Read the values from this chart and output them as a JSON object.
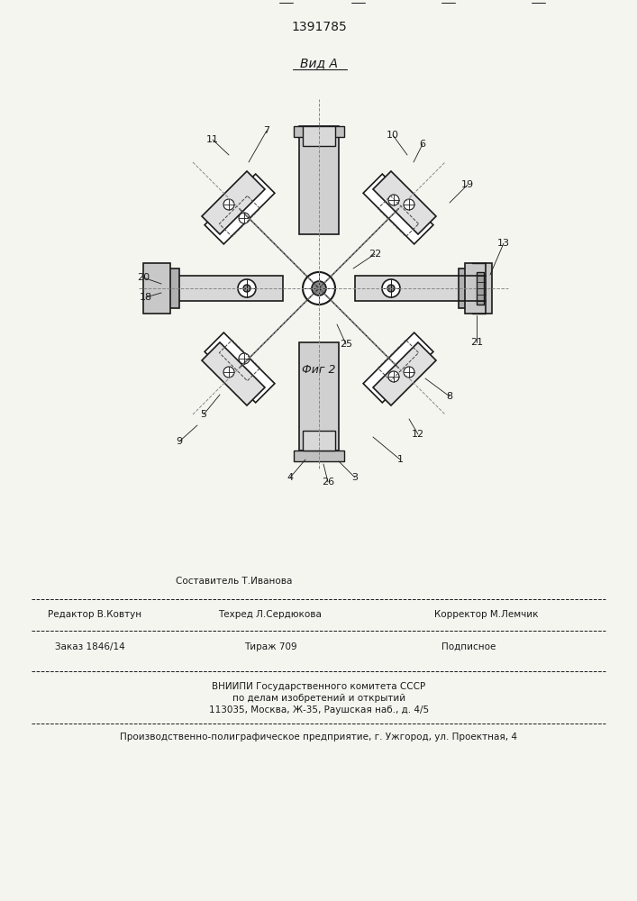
{
  "patent_number": "1391785",
  "view_label": "Вид А",
  "fig_label": "Фиг 2",
  "bg_color": "#f5f5f0",
  "line_color": "#1a1a1a",
  "footer": {
    "col1_line1": "",
    "col2_line1": "Составитель Т.Иванова",
    "col3_line1": "",
    "col1_line2": "Редактор В.Ковтун",
    "col2_line2": "Техред Л.Сердюкова",
    "col3_line2": "Корректор М.Лемчик",
    "col1_line3": "Заказ 1846/14",
    "col2_line3": "Тираж 709",
    "col3_line3": "Подписное",
    "vniip1": "ВНИИПИ Государственного комитета СССР",
    "vniip2": "по делам изобретений и открытий",
    "vniip3": "113035, Москва, Ж-35, Раушская наб., д. 4/5",
    "prod": "Производственно-полиграфическое предприятие, г. Ужгород, ул. Проектная, 4"
  }
}
